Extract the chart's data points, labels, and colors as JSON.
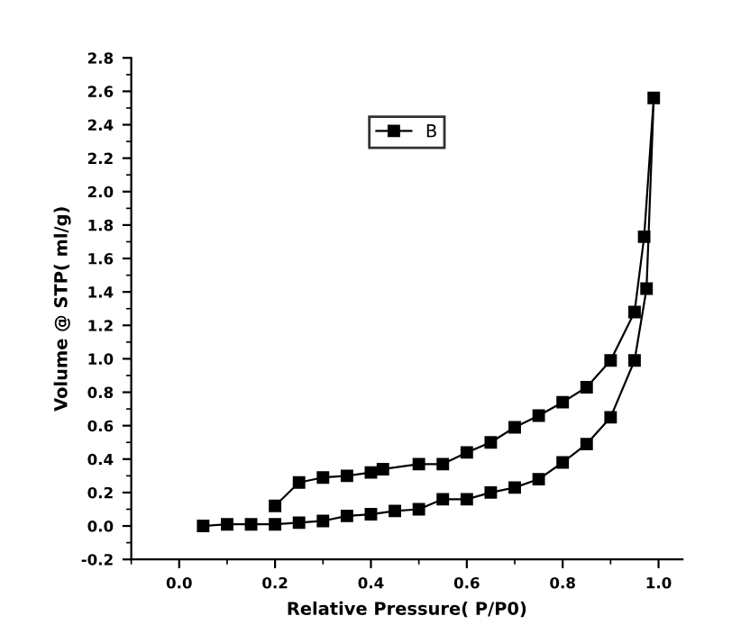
{
  "chart_data": {
    "type": "line",
    "xlabel": "Relative Pressure( P/P0)",
    "ylabel": "Volume @ STP( ml/g)",
    "x": [
      0.05,
      0.1,
      0.15,
      0.2,
      0.25,
      0.3,
      0.35,
      0.4,
      0.45,
      0.5,
      0.55,
      0.6,
      0.65,
      0.7,
      0.75,
      0.8,
      0.85,
      0.9,
      0.95,
      0.975,
      0.99,
      0.97,
      0.95,
      0.9,
      0.85,
      0.8,
      0.75,
      0.7,
      0.65,
      0.6,
      0.55,
      0.5,
      0.425,
      0.4,
      0.35,
      0.3,
      0.25,
      0.2
    ],
    "series": [
      {
        "name": "B",
        "color": "#000000",
        "values": [
          0.0,
          0.01,
          0.01,
          0.01,
          0.02,
          0.03,
          0.06,
          0.07,
          0.09,
          0.1,
          0.16,
          0.16,
          0.2,
          0.23,
          0.28,
          0.38,
          0.49,
          0.65,
          0.99,
          1.42,
          2.56,
          1.73,
          1.28,
          0.99,
          0.83,
          0.74,
          0.66,
          0.59,
          0.5,
          0.44,
          0.37,
          0.37,
          0.34,
          0.32,
          0.3,
          0.29,
          0.26,
          0.12
        ]
      }
    ],
    "xlim": [
      -0.1,
      1.05
    ],
    "ylim": [
      -0.2,
      2.8
    ],
    "xticks": [
      {
        "value": 0.0,
        "label": "0.0"
      },
      0.2,
      0.4,
      0.6,
      0.8,
      {
        "value": 1.0,
        "label": "1.0"
      }
    ],
    "yticks": [
      -0.2,
      {
        "value": 0.0,
        "label": "0.0"
      },
      0.2,
      0.4,
      0.6,
      0.8,
      {
        "value": 1.0,
        "label": "1.0"
      },
      1.2,
      1.4,
      1.6,
      1.8,
      {
        "value": 2.0,
        "label": "2.0"
      },
      2.2,
      2.4,
      2.6,
      2.8
    ],
    "marker": "square",
    "line_style": "solid",
    "grid": false,
    "legend": "top"
  }
}
